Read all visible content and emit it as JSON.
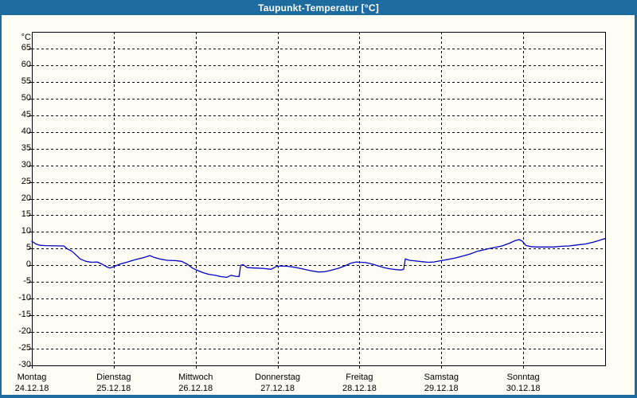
{
  "window": {
    "title": "Taupunkt-Temperatur [°C]",
    "titlebar_color": "#1e6c9f",
    "background_color": "#fdfdf6"
  },
  "chart_data": {
    "type": "line",
    "title": "Taupunkt-Temperatur [°C]",
    "unit_label": "°C",
    "ylabel": "°C",
    "ylim": [
      -30,
      70
    ],
    "ytick_step": 5,
    "yticks": [
      65,
      60,
      55,
      50,
      45,
      40,
      35,
      30,
      25,
      20,
      15,
      10,
      5,
      0,
      -5,
      -10,
      -15,
      -20,
      -25,
      -30
    ],
    "grid": "dashed",
    "grid_color": "#000000",
    "line_color": "#0000c0",
    "axis_color": "#000000",
    "legend": "none",
    "x_days": [
      {
        "name": "Montag",
        "date": "24.12.18"
      },
      {
        "name": "Dienstag",
        "date": "25.12.18"
      },
      {
        "name": "Mittwoch",
        "date": "26.12.18"
      },
      {
        "name": "Donnerstag",
        "date": "27.12.18"
      },
      {
        "name": "Freitag",
        "date": "28.12.18"
      },
      {
        "name": "Samstag",
        "date": "29.12.18"
      },
      {
        "name": "Sonntag",
        "date": "30.12.18"
      }
    ],
    "series": [
      {
        "name": "Taupunkt",
        "color": "#0000c0",
        "x_unit": "days_since_monday_00h",
        "y_unit": "degC",
        "points": [
          [
            0.0,
            7.2
          ],
          [
            0.05,
            6.4
          ],
          [
            0.1,
            6.0
          ],
          [
            0.17,
            5.9
          ],
          [
            0.39,
            5.8
          ],
          [
            0.43,
            5.0
          ],
          [
            0.49,
            4.2
          ],
          [
            0.54,
            3.1
          ],
          [
            0.59,
            1.9
          ],
          [
            0.66,
            1.2
          ],
          [
            0.73,
            0.9
          ],
          [
            0.8,
            1.0
          ],
          [
            0.86,
            0.3
          ],
          [
            0.91,
            -0.4
          ],
          [
            0.95,
            -0.8
          ],
          [
            1.0,
            -0.4
          ],
          [
            1.07,
            0.3
          ],
          [
            1.17,
            1.0
          ],
          [
            1.26,
            1.7
          ],
          [
            1.36,
            2.3
          ],
          [
            1.44,
            2.9
          ],
          [
            1.49,
            2.4
          ],
          [
            1.56,
            1.9
          ],
          [
            1.65,
            1.5
          ],
          [
            1.75,
            1.4
          ],
          [
            1.83,
            1.2
          ],
          [
            1.9,
            0.3
          ],
          [
            1.96,
            -0.8
          ],
          [
            2.02,
            -1.5
          ],
          [
            2.09,
            -2.2
          ],
          [
            2.16,
            -2.7
          ],
          [
            2.24,
            -3.0
          ],
          [
            2.31,
            -3.4
          ],
          [
            2.38,
            -3.6
          ],
          [
            2.43,
            -3.0
          ],
          [
            2.49,
            -3.3
          ],
          [
            2.53,
            -3.4
          ],
          [
            2.55,
            0.0
          ],
          [
            2.58,
            0.2
          ],
          [
            2.63,
            -0.7
          ],
          [
            2.72,
            -0.8
          ],
          [
            2.82,
            -0.9
          ],
          [
            2.92,
            -1.2
          ],
          [
            2.99,
            -0.3
          ],
          [
            3.04,
            -0.2
          ],
          [
            3.13,
            -0.3
          ],
          [
            3.21,
            -0.6
          ],
          [
            3.31,
            -1.1
          ],
          [
            3.4,
            -1.6
          ],
          [
            3.5,
            -2.0
          ],
          [
            3.58,
            -1.9
          ],
          [
            3.65,
            -1.5
          ],
          [
            3.74,
            -0.9
          ],
          [
            3.82,
            -0.2
          ],
          [
            3.89,
            0.6
          ],
          [
            3.96,
            1.0
          ],
          [
            4.02,
            0.9
          ],
          [
            4.08,
            0.8
          ],
          [
            4.15,
            0.4
          ],
          [
            4.22,
            -0.1
          ],
          [
            4.3,
            -0.7
          ],
          [
            4.38,
            -1.1
          ],
          [
            4.45,
            -1.3
          ],
          [
            4.51,
            -1.4
          ],
          [
            4.54,
            -1.2
          ],
          [
            4.56,
            1.9
          ],
          [
            4.61,
            1.5
          ],
          [
            4.69,
            1.3
          ],
          [
            4.76,
            1.1
          ],
          [
            4.84,
            0.9
          ],
          [
            4.91,
            1.0
          ],
          [
            5.0,
            1.4
          ],
          [
            5.09,
            1.8
          ],
          [
            5.17,
            2.2
          ],
          [
            5.25,
            2.7
          ],
          [
            5.35,
            3.4
          ],
          [
            5.44,
            4.2
          ],
          [
            5.54,
            4.8
          ],
          [
            5.64,
            5.3
          ],
          [
            5.74,
            5.8
          ],
          [
            5.83,
            6.6
          ],
          [
            5.9,
            7.4
          ],
          [
            5.95,
            7.7
          ],
          [
            5.99,
            7.2
          ],
          [
            6.03,
            6.0
          ],
          [
            6.09,
            5.6
          ],
          [
            6.17,
            5.5
          ],
          [
            6.27,
            5.5
          ],
          [
            6.37,
            5.5
          ],
          [
            6.47,
            5.7
          ],
          [
            6.56,
            5.8
          ],
          [
            6.66,
            6.1
          ],
          [
            6.76,
            6.4
          ],
          [
            6.85,
            6.9
          ],
          [
            6.92,
            7.4
          ],
          [
            6.98,
            7.9
          ],
          [
            7.0,
            8.0
          ]
        ]
      }
    ]
  }
}
